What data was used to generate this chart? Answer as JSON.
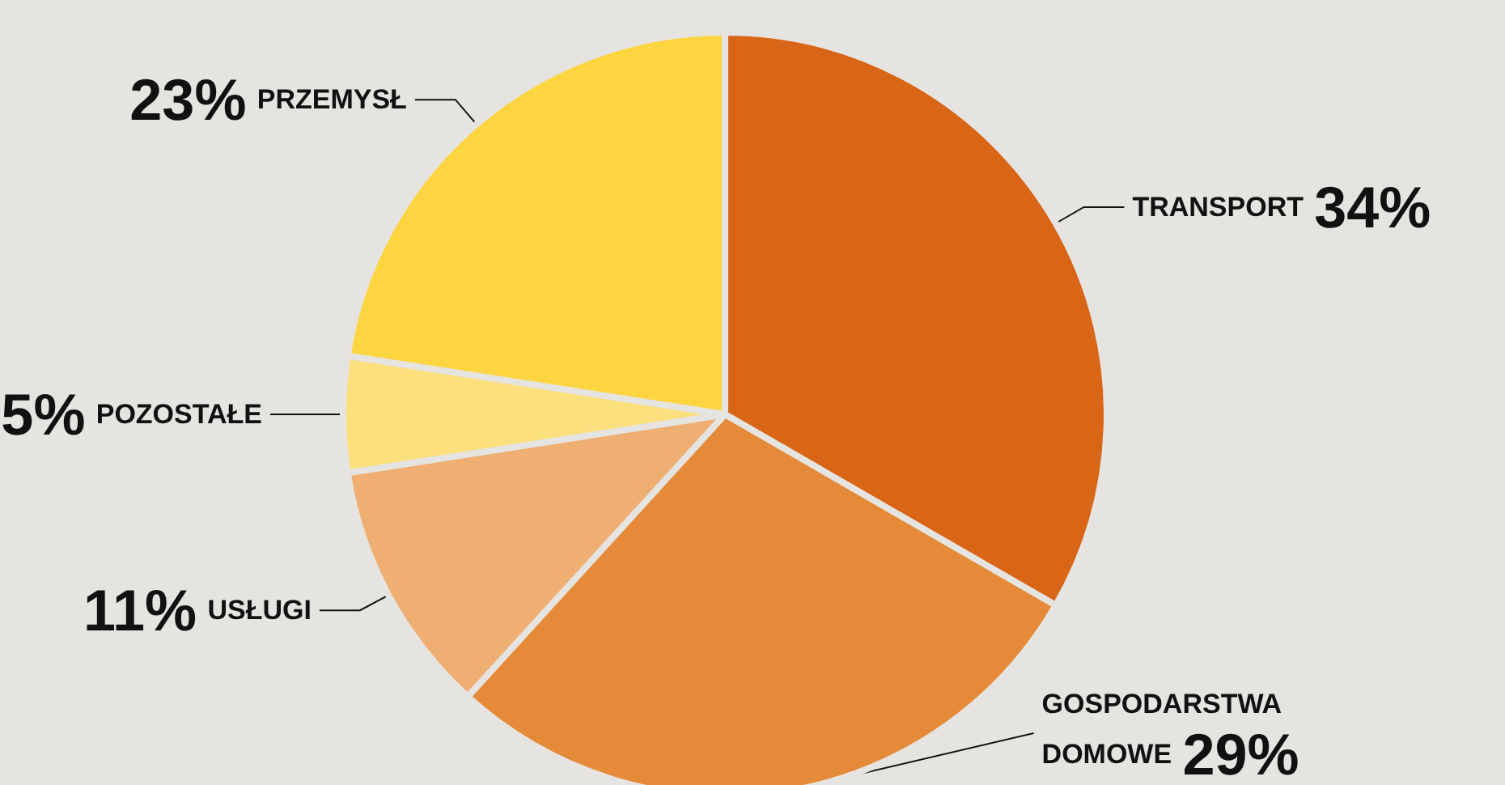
{
  "chart_data": {
    "type": "pie",
    "categories": [
      "TRANSPORT",
      "GOSPODARSTWA DOMOWE",
      "USŁUGI",
      "POZOSTAŁE",
      "PRZEMYSŁ"
    ],
    "values": [
      34,
      29,
      11,
      5,
      23
    ],
    "colors": [
      "#d96516",
      "#e58a38",
      "#efae72",
      "#fbe07d",
      "#fdd540"
    ],
    "value_labels": [
      "34%",
      "29%",
      "11%",
      "5%",
      "23%"
    ],
    "legend": false
  }
}
